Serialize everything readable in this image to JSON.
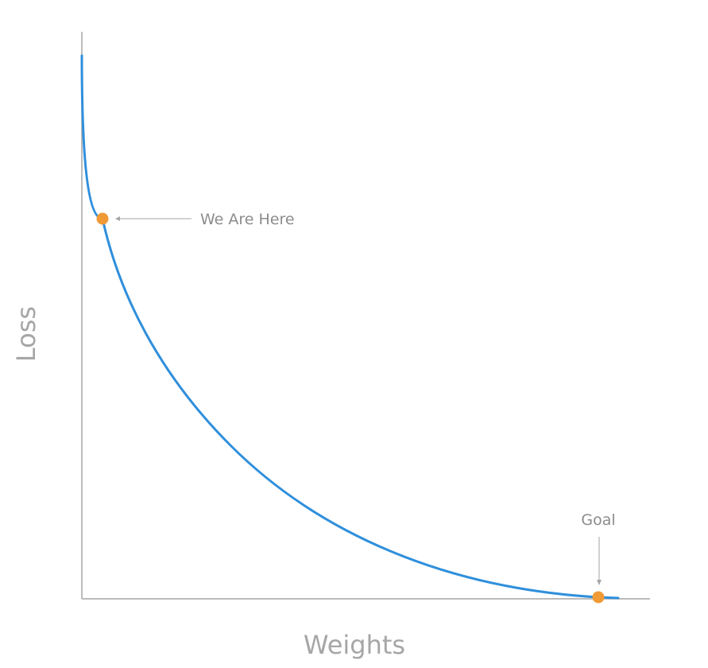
{
  "diagram": {
    "xlabel": "Weights",
    "ylabel": "Loss",
    "annotations": {
      "current": "We Are Here",
      "goal": "Goal"
    },
    "colors": {
      "axis": "#a6a6a6",
      "curve": "#2f8fdc",
      "marker": "#f09a36",
      "annotation_text": "#8c8c8c"
    }
  }
}
